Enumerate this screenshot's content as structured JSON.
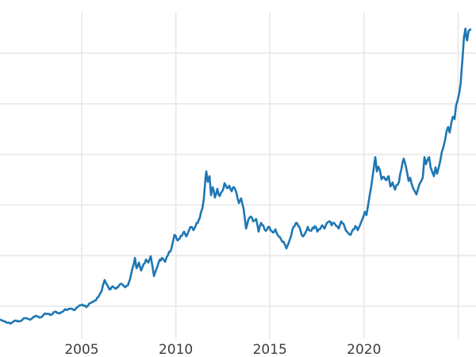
{
  "chart_data": {
    "type": "line",
    "title": "",
    "xlabel": "",
    "ylabel": "",
    "grid": true,
    "legend": false,
    "x_ticks": [
      {
        "year": 2005,
        "label": "2005"
      },
      {
        "year": 2010,
        "label": "2010"
      },
      {
        "year": 2015,
        "label": "2015"
      },
      {
        "year": 2020,
        "label": "2020"
      }
    ],
    "x_gridline_years": [
      2005,
      2010,
      2015,
      2020,
      2025
    ],
    "y_gridline_values_estimated": [
      500,
      1000,
      1500,
      2000,
      2500,
      3000
    ],
    "y_tick_labels_visible": false,
    "note": "y-axis tick labels are cropped outside the left edge of the screenshot; y values estimated from the six unlabeled horizontal gridlines (spacing = 500 units)",
    "xlim": [
      2000.66,
      2025.95
    ],
    "ylim": [
      179,
      3408
    ],
    "series": [
      {
        "name": "",
        "points": [
          [
            2000.66,
            367
          ],
          [
            2000.91,
            351
          ],
          [
            2001.21,
            328
          ],
          [
            2001.46,
            359
          ],
          [
            2001.71,
            351
          ],
          [
            2001.97,
            382
          ],
          [
            2002.26,
            367
          ],
          [
            2002.56,
            406
          ],
          [
            2002.81,
            390
          ],
          [
            2003.06,
            429
          ],
          [
            2003.32,
            414
          ],
          [
            2003.57,
            445
          ],
          [
            2003.82,
            429
          ],
          [
            2004.07,
            461
          ],
          [
            2004.33,
            476
          ],
          [
            2004.58,
            461
          ],
          [
            2004.83,
            500
          ],
          [
            2005.04,
            516
          ],
          [
            2005.25,
            492
          ],
          [
            2005.47,
            531
          ],
          [
            2005.68,
            555
          ],
          [
            2005.89,
            594
          ],
          [
            2006.06,
            649
          ],
          [
            2006.22,
            759
          ],
          [
            2006.35,
            712
          ],
          [
            2006.48,
            665
          ],
          [
            2006.65,
            696
          ],
          [
            2006.81,
            672
          ],
          [
            2006.98,
            704
          ],
          [
            2007.15,
            719
          ],
          [
            2007.32,
            688
          ],
          [
            2007.45,
            704
          ],
          [
            2007.57,
            766
          ],
          [
            2007.7,
            876
          ],
          [
            2007.83,
            978
          ],
          [
            2007.91,
            876
          ],
          [
            2008.04,
            931
          ],
          [
            2008.16,
            853
          ],
          [
            2008.29,
            915
          ],
          [
            2008.42,
            962
          ],
          [
            2008.54,
            931
          ],
          [
            2008.67,
            994
          ],
          [
            2008.75,
            908
          ],
          [
            2008.84,
            798
          ],
          [
            2008.96,
            860
          ],
          [
            2009.09,
            931
          ],
          [
            2009.26,
            978
          ],
          [
            2009.43,
            939
          ],
          [
            2009.59,
            1009
          ],
          [
            2009.76,
            1064
          ],
          [
            2009.93,
            1205
          ],
          [
            2010.1,
            1150
          ],
          [
            2010.27,
            1198
          ],
          [
            2010.44,
            1237
          ],
          [
            2010.56,
            1190
          ],
          [
            2010.78,
            1284
          ],
          [
            2010.94,
            1252
          ],
          [
            2011.11,
            1323
          ],
          [
            2011.28,
            1378
          ],
          [
            2011.41,
            1464
          ],
          [
            2011.49,
            1558
          ],
          [
            2011.58,
            1770
          ],
          [
            2011.62,
            1832
          ],
          [
            2011.7,
            1730
          ],
          [
            2011.79,
            1785
          ],
          [
            2011.87,
            1597
          ],
          [
            2011.96,
            1676
          ],
          [
            2012.08,
            1574
          ],
          [
            2012.21,
            1660
          ],
          [
            2012.33,
            1589
          ],
          [
            2012.46,
            1636
          ],
          [
            2012.59,
            1715
          ],
          [
            2012.71,
            1668
          ],
          [
            2012.84,
            1691
          ],
          [
            2012.97,
            1636
          ],
          [
            2013.09,
            1676
          ],
          [
            2013.22,
            1621
          ],
          [
            2013.35,
            1519
          ],
          [
            2013.47,
            1566
          ],
          [
            2013.6,
            1464
          ],
          [
            2013.73,
            1268
          ],
          [
            2013.85,
            1354
          ],
          [
            2013.98,
            1386
          ],
          [
            2014.11,
            1339
          ],
          [
            2014.27,
            1362
          ],
          [
            2014.4,
            1237
          ],
          [
            2014.53,
            1323
          ],
          [
            2014.65,
            1299
          ],
          [
            2014.78,
            1245
          ],
          [
            2014.91,
            1284
          ],
          [
            2015.03,
            1252
          ],
          [
            2015.16,
            1229
          ],
          [
            2015.29,
            1260
          ],
          [
            2015.41,
            1205
          ],
          [
            2015.54,
            1182
          ],
          [
            2015.67,
            1135
          ],
          [
            2015.79,
            1111
          ],
          [
            2015.88,
            1072
          ],
          [
            2016.0,
            1127
          ],
          [
            2016.13,
            1198
          ],
          [
            2016.25,
            1284
          ],
          [
            2016.38,
            1323
          ],
          [
            2016.51,
            1292
          ],
          [
            2016.63,
            1245
          ],
          [
            2016.76,
            1190
          ],
          [
            2016.89,
            1229
          ],
          [
            2017.01,
            1284
          ],
          [
            2017.14,
            1245
          ],
          [
            2017.27,
            1276
          ],
          [
            2017.39,
            1292
          ],
          [
            2017.52,
            1237
          ],
          [
            2017.65,
            1260
          ],
          [
            2017.77,
            1299
          ],
          [
            2017.9,
            1268
          ],
          [
            2018.03,
            1323
          ],
          [
            2018.15,
            1339
          ],
          [
            2018.28,
            1299
          ],
          [
            2018.41,
            1323
          ],
          [
            2018.53,
            1292
          ],
          [
            2018.66,
            1268
          ],
          [
            2018.79,
            1339
          ],
          [
            2018.91,
            1315
          ],
          [
            2019.04,
            1245
          ],
          [
            2019.16,
            1221
          ],
          [
            2019.29,
            1205
          ],
          [
            2019.42,
            1260
          ],
          [
            2019.54,
            1292
          ],
          [
            2019.67,
            1252
          ],
          [
            2019.8,
            1307
          ],
          [
            2019.88,
            1346
          ],
          [
            2019.97,
            1386
          ],
          [
            2020.05,
            1433
          ],
          [
            2020.13,
            1401
          ],
          [
            2020.22,
            1503
          ],
          [
            2020.3,
            1597
          ],
          [
            2020.39,
            1691
          ],
          [
            2020.47,
            1801
          ],
          [
            2020.55,
            1911
          ],
          [
            2020.6,
            1973
          ],
          [
            2020.68,
            1832
          ],
          [
            2020.76,
            1879
          ],
          [
            2020.85,
            1840
          ],
          [
            2020.93,
            1754
          ],
          [
            2021.06,
            1777
          ],
          [
            2021.19,
            1746
          ],
          [
            2021.31,
            1785
          ],
          [
            2021.4,
            1683
          ],
          [
            2021.52,
            1723
          ],
          [
            2021.65,
            1652
          ],
          [
            2021.78,
            1699
          ],
          [
            2021.86,
            1730
          ],
          [
            2021.99,
            1856
          ],
          [
            2022.11,
            1958
          ],
          [
            2022.2,
            1903
          ],
          [
            2022.28,
            1832
          ],
          [
            2022.37,
            1738
          ],
          [
            2022.45,
            1770
          ],
          [
            2022.53,
            1707
          ],
          [
            2022.62,
            1660
          ],
          [
            2022.7,
            1636
          ],
          [
            2022.79,
            1605
          ],
          [
            2022.87,
            1660
          ],
          [
            2022.95,
            1707
          ],
          [
            2023.04,
            1738
          ],
          [
            2023.12,
            1770
          ],
          [
            2023.21,
            1973
          ],
          [
            2023.29,
            1903
          ],
          [
            2023.38,
            1950
          ],
          [
            2023.46,
            1973
          ],
          [
            2023.54,
            1872
          ],
          [
            2023.63,
            1824
          ],
          [
            2023.71,
            1785
          ],
          [
            2023.8,
            1872
          ],
          [
            2023.88,
            1809
          ],
          [
            2023.96,
            1864
          ],
          [
            2024.05,
            1934
          ],
          [
            2024.13,
            2020
          ],
          [
            2024.22,
            2075
          ],
          [
            2024.3,
            2138
          ],
          [
            2024.39,
            2232
          ],
          [
            2024.47,
            2271
          ],
          [
            2024.55,
            2216
          ],
          [
            2024.64,
            2310
          ],
          [
            2024.72,
            2373
          ],
          [
            2024.81,
            2350
          ],
          [
            2024.89,
            2483
          ],
          [
            2024.97,
            2530
          ],
          [
            2025.06,
            2608
          ],
          [
            2025.14,
            2710
          ],
          [
            2025.18,
            2820
          ],
          [
            2025.23,
            2937
          ],
          [
            2025.27,
            3047
          ],
          [
            2025.31,
            3157
          ],
          [
            2025.39,
            3243
          ],
          [
            2025.44,
            3149
          ],
          [
            2025.48,
            3126
          ],
          [
            2025.56,
            3220
          ],
          [
            2025.65,
            3235
          ]
        ]
      }
    ],
    "style": {
      "line_color": "#1f77b4",
      "line_width": 2.6,
      "grid_color": "#eaeaea",
      "grid_width": 1.8,
      "background": "#ffffff",
      "tick_label_color": "#3d3d3d",
      "tick_label_size": 17
    },
    "noise": {
      "seed": 11,
      "base": 0.6,
      "scale": 900,
      "max": 3.2,
      "step_years": 0.065
    }
  }
}
